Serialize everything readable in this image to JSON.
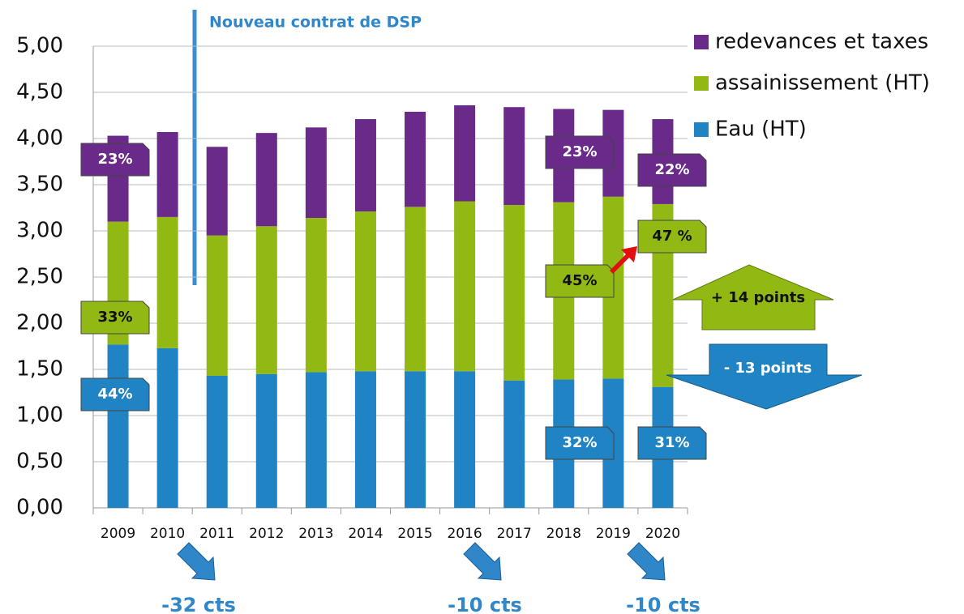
{
  "chart_data": {
    "type": "stacked_bar",
    "categories": [
      "2009",
      "2010",
      "2011",
      "2012",
      "2013",
      "2014",
      "2015",
      "2016",
      "2017",
      "2018",
      "2019",
      "2020"
    ],
    "series": [
      {
        "name": "Eau (HT)",
        "color": "#1f83c4",
        "values": [
          1.77,
          1.73,
          1.43,
          1.45,
          1.47,
          1.48,
          1.48,
          1.48,
          1.38,
          1.39,
          1.4,
          1.31
        ]
      },
      {
        "name": "assainissement (HT)",
        "color": "#92b814",
        "values": [
          1.33,
          1.42,
          1.52,
          1.6,
          1.67,
          1.73,
          1.78,
          1.84,
          1.9,
          1.92,
          1.97,
          1.98
        ]
      },
      {
        "name": "redevances et taxes",
        "color": "#6a2a8a",
        "values": [
          0.93,
          0.92,
          0.96,
          1.01,
          0.98,
          1.0,
          1.03,
          1.04,
          1.06,
          1.01,
          0.94,
          0.92
        ]
      }
    ],
    "ylim": [
      0,
      5
    ],
    "yticks": [
      {
        "value": 0,
        "label": "0,00"
      },
      {
        "value": 0.5,
        "label": "0,50"
      },
      {
        "value": 1,
        "label": "1,00"
      },
      {
        "value": 1.5,
        "label": "1,50"
      },
      {
        "value": 2,
        "label": "2,00"
      },
      {
        "value": 2.5,
        "label": "2,50"
      },
      {
        "value": 3,
        "label": "3,00"
      },
      {
        "value": 3.5,
        "label": "3,50"
      },
      {
        "value": 4,
        "label": "4,00"
      },
      {
        "value": 4.5,
        "label": "4,50"
      },
      {
        "value": 5,
        "label": "5,00"
      }
    ],
    "grid": true,
    "legend": "top-right",
    "callouts": [
      "23%",
      "33%",
      "44%",
      "23%",
      "45%",
      "32%",
      "22%",
      "47 %",
      "31%"
    ],
    "arrows": [
      "+ 14 points",
      "- 13 points"
    ],
    "note": "Nouveau contrat de DSP",
    "changes": [
      "-32 cts",
      "-10 cts",
      "-10 cts"
    ]
  }
}
